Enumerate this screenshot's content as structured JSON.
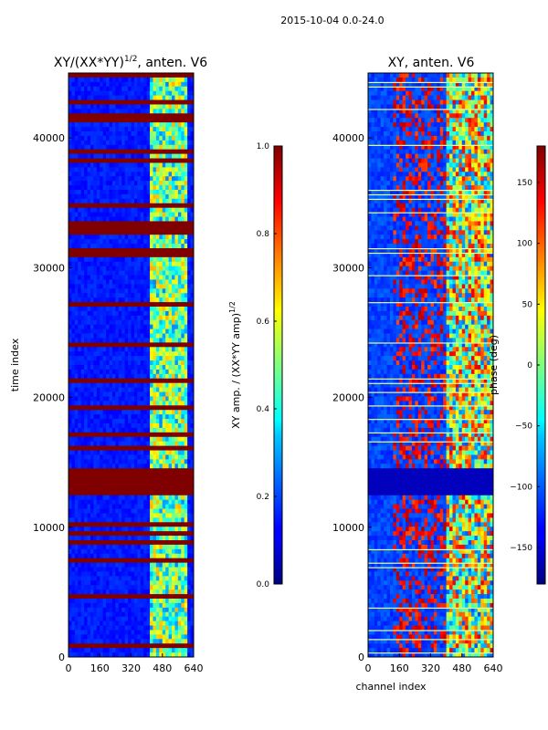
{
  "figure_title": "2015-10-04 0.0-24.0",
  "chart_data": [
    {
      "type": "heatmap",
      "title": "XY/(XX*YY)",
      "title_superscript": "1/2",
      "title_suffix": ", anten. V6",
      "xlabel": "",
      "ylabel": "time index",
      "x_ticks": [
        0,
        160,
        320,
        480,
        640
      ],
      "x_tick_labels": [
        "0",
        "160",
        "320",
        "480",
        "640"
      ],
      "y_ticks": [
        0,
        10000,
        20000,
        30000,
        40000
      ],
      "y_tick_labels": [
        "0",
        "10000",
        "20000",
        "30000",
        "40000"
      ],
      "xlim": [
        0,
        640
      ],
      "ylim": [
        0,
        45000
      ],
      "colormap": "jet",
      "colorbar": {
        "range": [
          0.0,
          1.0
        ],
        "ticks": [
          0.0,
          0.2,
          0.4,
          0.6,
          0.8,
          1.0
        ],
        "tick_labels": [
          "0.0",
          "0.2",
          "0.4",
          "0.6",
          "0.8",
          "1.0"
        ],
        "label": "XY amp. / (XX*YY amp)",
        "label_superscript": "1/2"
      },
      "features": {
        "saturated_band_time_range": [
          12300,
          14700
        ],
        "active_channel_range": [
          410,
          600
        ]
      }
    },
    {
      "type": "heatmap",
      "title": "XY, anten. V6",
      "xlabel": "channel index",
      "ylabel": "",
      "x_ticks": [
        0,
        160,
        320,
        480,
        640
      ],
      "x_tick_labels": [
        "0",
        "160",
        "320",
        "480",
        "640"
      ],
      "y_ticks": [
        0,
        10000,
        20000,
        30000,
        40000
      ],
      "y_tick_labels": [
        "0",
        "10000",
        "20000",
        "30000",
        "40000"
      ],
      "xlim": [
        0,
        640
      ],
      "ylim": [
        0,
        45000
      ],
      "colormap": "jet",
      "colorbar": {
        "range": [
          -180,
          180
        ],
        "ticks": [
          -150,
          -100,
          -50,
          0,
          50,
          100,
          150
        ],
        "tick_labels": [
          "−150",
          "−100",
          "−50",
          "0",
          "50",
          "100",
          "150"
        ],
        "label": "phase (deg)"
      },
      "features": {
        "constant_band_time_range": [
          12300,
          14700
        ],
        "active_channel_range": [
          400,
          640
        ]
      }
    }
  ]
}
